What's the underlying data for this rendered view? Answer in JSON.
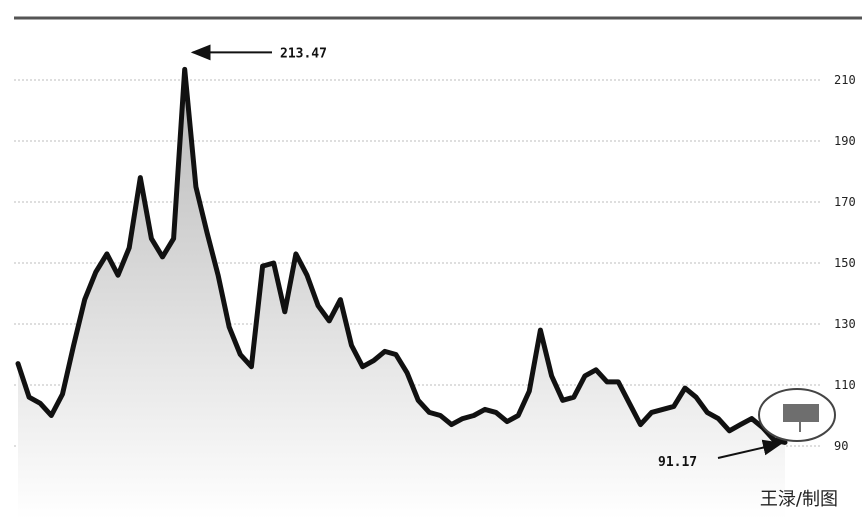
{
  "chart_data": {
    "type": "area",
    "title": "",
    "xlabel": "",
    "ylabel": "",
    "ylim": [
      80,
      222
    ],
    "yticks": [
      90,
      110,
      130,
      150,
      170,
      190,
      210
    ],
    "y_tick_labels": [
      "90",
      "110",
      "130",
      "150",
      "170",
      "190",
      "210"
    ],
    "grid": true,
    "series": [
      {
        "values": [
          117,
          106,
          104,
          100,
          107,
          123,
          138,
          147,
          153,
          146,
          155,
          178,
          158,
          152,
          158,
          213.47,
          175,
          160,
          146,
          129,
          120,
          116,
          149,
          150,
          134,
          153,
          146,
          136,
          131,
          138,
          123,
          116,
          118,
          121,
          120,
          114,
          105,
          101,
          100,
          97,
          99,
          100,
          102,
          101,
          98,
          100,
          108,
          128,
          113,
          105,
          106,
          113,
          115,
          111,
          111,
          104,
          97,
          101,
          102,
          103,
          109,
          106,
          101,
          99,
          95,
          97,
          99,
          96,
          92,
          91.17
        ]
      }
    ],
    "annotations": [
      {
        "label": "213.47",
        "value": 213.47,
        "type": "peak"
      },
      {
        "label": "91.17",
        "value": 91.17,
        "type": "latest"
      }
    ]
  },
  "credit": "王渌/制图",
  "colors": {
    "line": "#111111",
    "fill_top": "#b8b8b8",
    "fill_bottom": "#ffffff",
    "grid": "#bdbdbd",
    "top_rule": "#555555",
    "marker_box": "#6e6e6e"
  }
}
